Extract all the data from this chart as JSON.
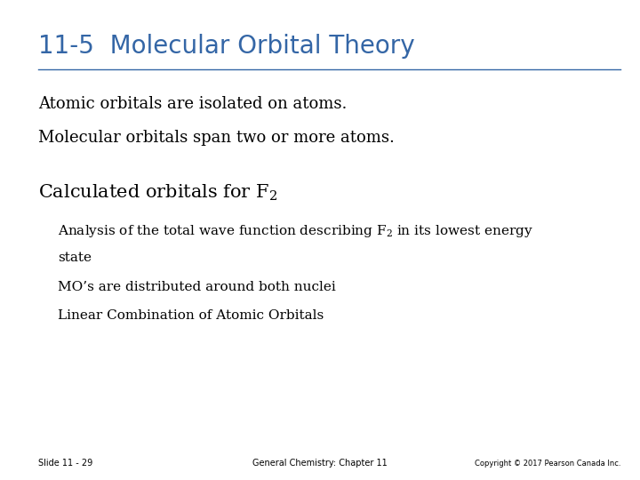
{
  "title": "11-5  Molecular Orbital Theory",
  "title_color": "#3466A6",
  "title_fontsize": 20,
  "background_color": "#FFFFFF",
  "line1": "Atomic orbitals are isolated on atoms.",
  "line2": "Molecular orbitals span two or more atoms.",
  "body_fontsize": 13,
  "section_fontsize": 15,
  "bullet_fontsize": 11,
  "footer_left": "Slide 11 - 29",
  "footer_center": "General Chemistry: Chapter 11",
  "footer_right": "Copyright © 2017 Pearson Canada Inc.",
  "text_color": "#000000",
  "mos_line": "MO’s are distributed around both nuclei",
  "lcao_line": "Linear Combination of Atomic Orbitals",
  "state_line": "state"
}
